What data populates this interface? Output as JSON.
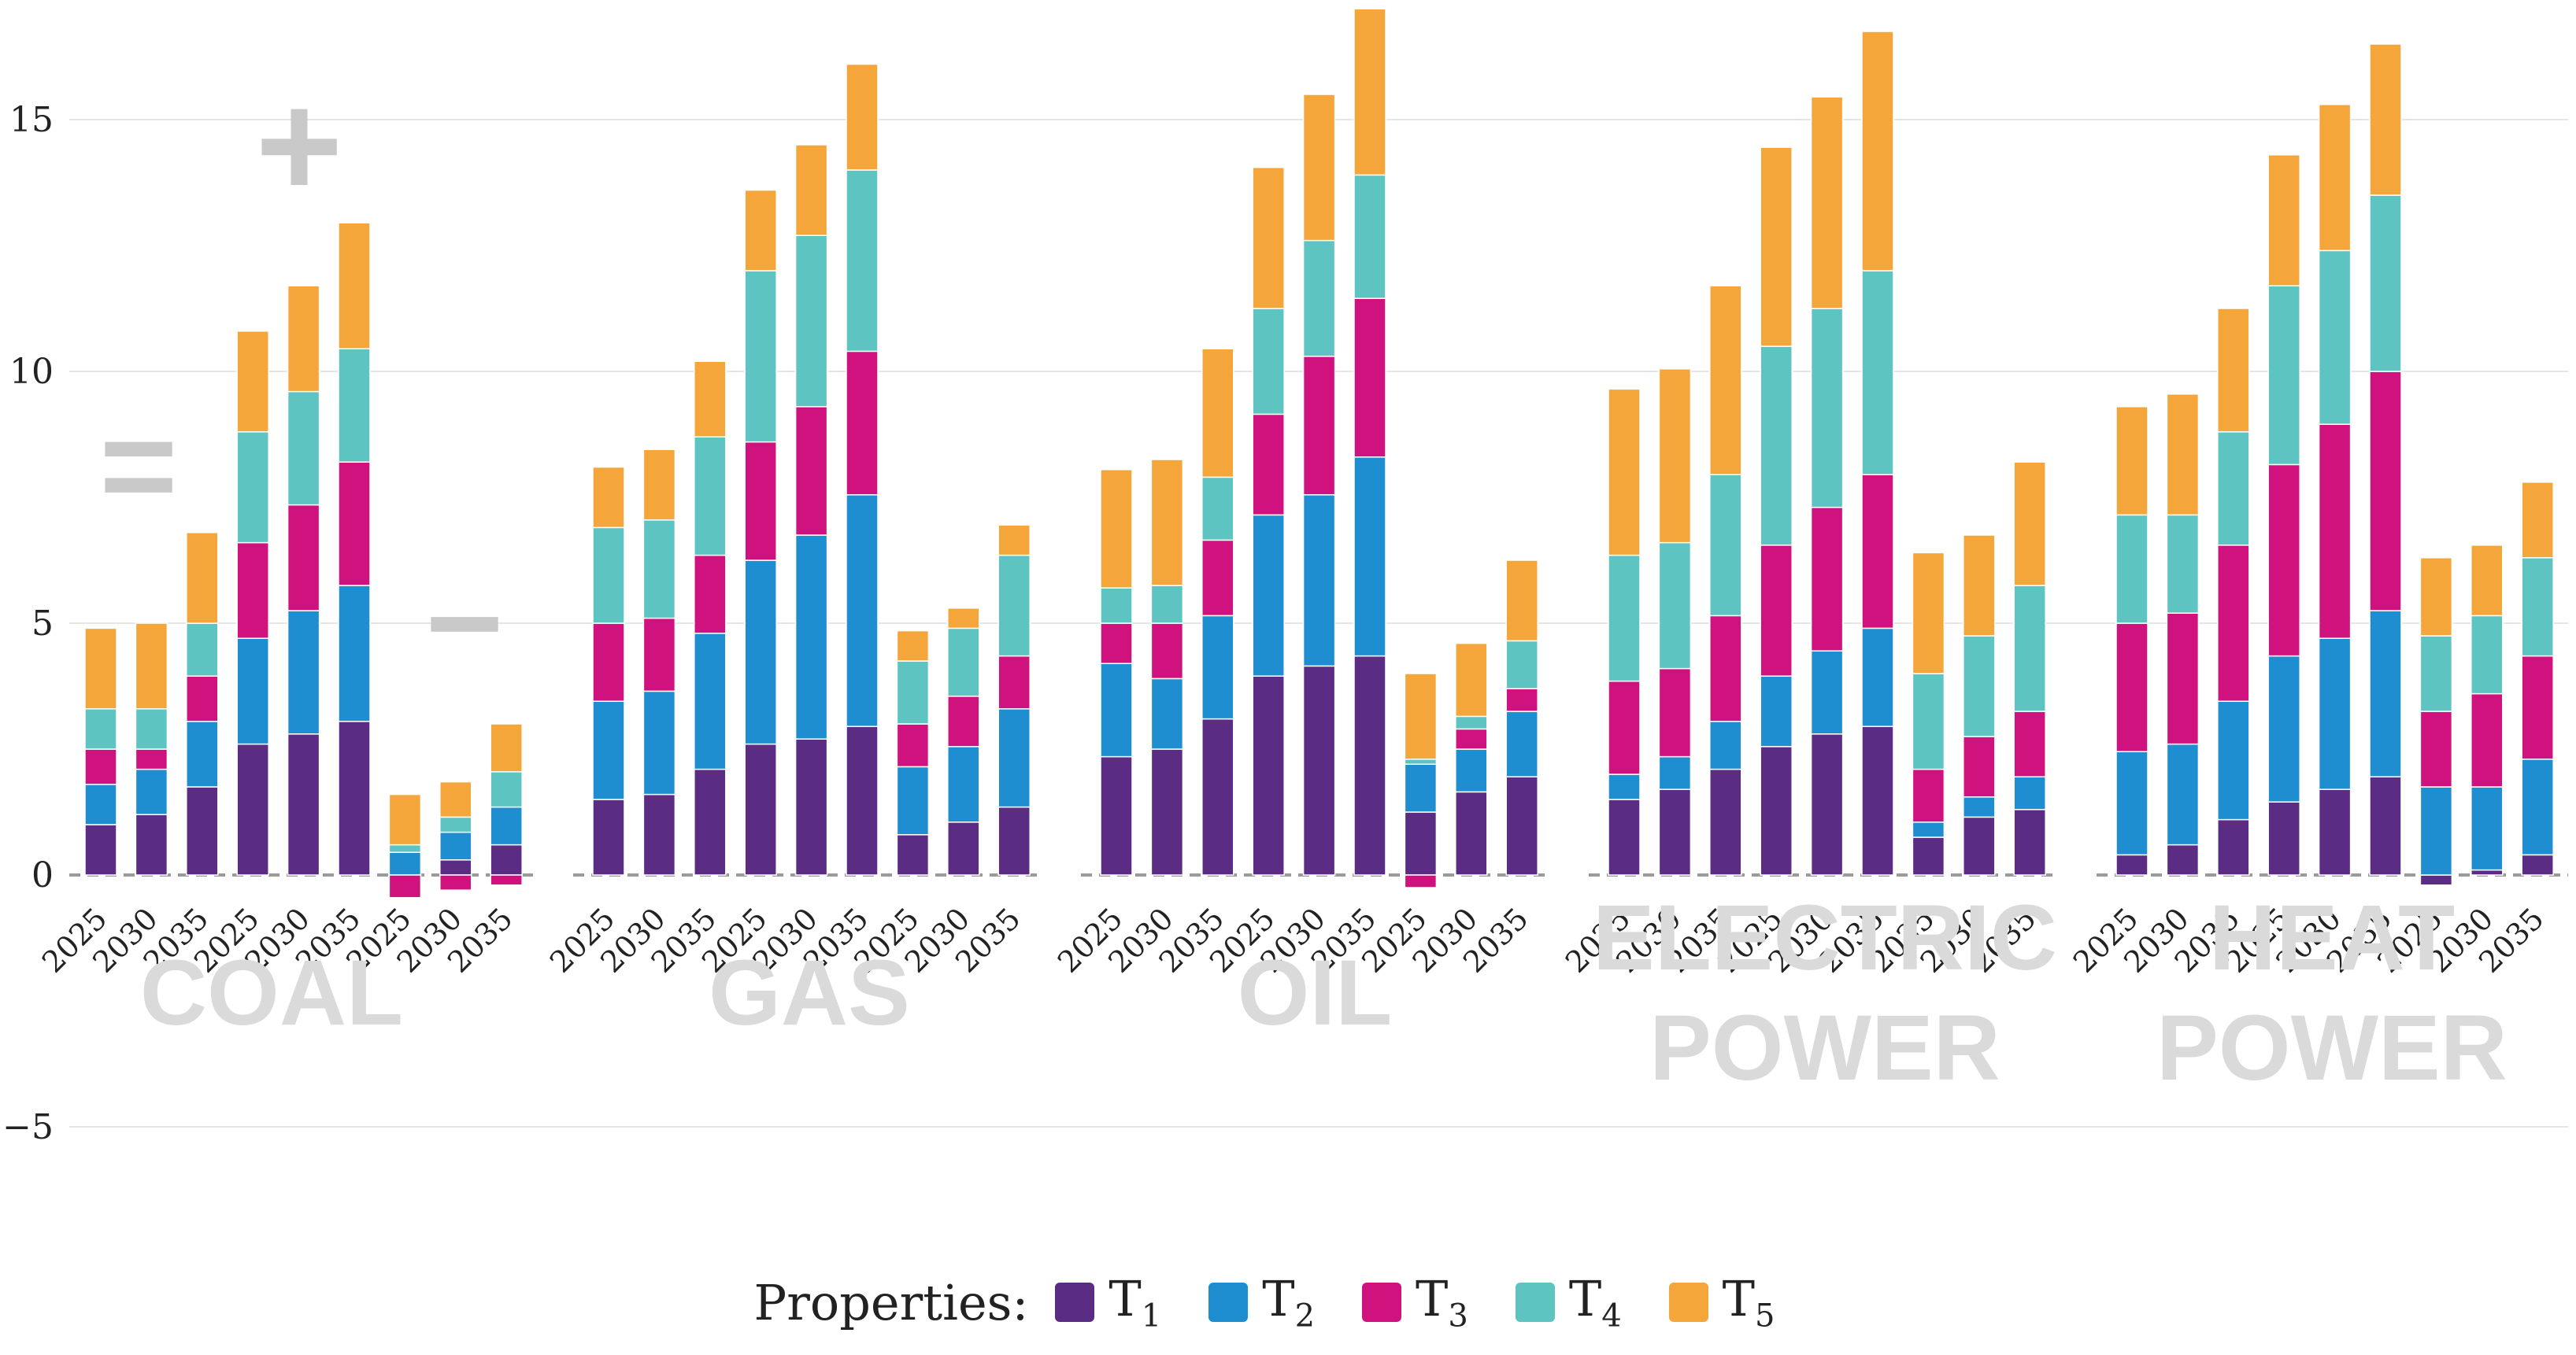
{
  "chart_data": {
    "type": "bar",
    "stacked": true,
    "ylim": [
      -5,
      17
    ],
    "yticks": [
      -5,
      0,
      5,
      10,
      15
    ],
    "legend": {
      "title": "Properties:",
      "position": "bottom",
      "entries": [
        {
          "key": "T1",
          "base": "T",
          "sub": "1",
          "color": "#5b2c83"
        },
        {
          "key": "T2",
          "base": "T",
          "sub": "2",
          "color": "#1f8ed0"
        },
        {
          "key": "T3",
          "base": "T",
          "sub": "3",
          "color": "#d0127f"
        },
        {
          "key": "T4",
          "base": "T",
          "sub": "4",
          "color": "#5ec4c1"
        },
        {
          "key": "T5",
          "base": "T",
          "sub": "5",
          "color": "#f5a63b"
        }
      ]
    },
    "scenario_signs": [
      "=",
      "+",
      "−"
    ],
    "groups": [
      {
        "label": "COAL",
        "bars": [
          {
            "year": "2025",
            "values": [
              1.0,
              0.8,
              0.7,
              0.8,
              1.6
            ]
          },
          {
            "year": "2030",
            "values": [
              1.2,
              0.9,
              0.4,
              0.8,
              1.7
            ]
          },
          {
            "year": "2035",
            "values": [
              1.75,
              1.3,
              0.9,
              1.05,
              1.8
            ]
          },
          {
            "year": "2025",
            "values": [
              2.6,
              2.1,
              1.9,
              2.2,
              2.0
            ]
          },
          {
            "year": "2030",
            "values": [
              2.8,
              2.45,
              2.1,
              2.25,
              2.1
            ]
          },
          {
            "year": "2035",
            "values": [
              3.05,
              2.7,
              2.45,
              2.25,
              2.5
            ]
          },
          {
            "year": "2025",
            "values": [
              0.0,
              0.45,
              -0.45,
              0.15,
              1.0
            ]
          },
          {
            "year": "2030",
            "values": [
              0.3,
              0.55,
              -0.3,
              0.3,
              0.7
            ]
          },
          {
            "year": "2035",
            "values": [
              0.6,
              0.75,
              -0.2,
              0.7,
              0.95
            ]
          }
        ]
      },
      {
        "label": "GAS",
        "bars": [
          {
            "year": "2025",
            "values": [
              1.5,
              1.95,
              1.55,
              1.9,
              1.2
            ]
          },
          {
            "year": "2030",
            "values": [
              1.6,
              2.05,
              1.45,
              1.95,
              1.4
            ]
          },
          {
            "year": "2035",
            "values": [
              2.1,
              2.7,
              1.55,
              2.35,
              1.5
            ]
          },
          {
            "year": "2025",
            "values": [
              2.6,
              3.65,
              2.35,
              3.4,
              1.6
            ]
          },
          {
            "year": "2030",
            "values": [
              2.7,
              4.05,
              2.55,
              3.4,
              1.8
            ]
          },
          {
            "year": "2035",
            "values": [
              2.95,
              4.6,
              2.85,
              3.6,
              2.1
            ]
          },
          {
            "year": "2025",
            "values": [
              0.8,
              1.35,
              0.85,
              1.25,
              0.6
            ]
          },
          {
            "year": "2030",
            "values": [
              1.05,
              1.5,
              1.0,
              1.35,
              0.4
            ]
          },
          {
            "year": "2035",
            "values": [
              1.35,
              1.95,
              1.05,
              2.0,
              0.6
            ]
          }
        ]
      },
      {
        "label": "OIL",
        "bars": [
          {
            "year": "2025",
            "values": [
              2.35,
              1.85,
              0.8,
              0.7,
              2.35
            ]
          },
          {
            "year": "2030",
            "values": [
              2.5,
              1.4,
              1.1,
              0.75,
              2.5
            ]
          },
          {
            "year": "2035",
            "values": [
              3.1,
              2.05,
              1.5,
              1.25,
              2.55
            ]
          },
          {
            "year": "2025",
            "values": [
              3.95,
              3.2,
              2.0,
              2.1,
              2.8
            ]
          },
          {
            "year": "2030",
            "values": [
              4.15,
              3.4,
              2.75,
              2.3,
              2.9
            ]
          },
          {
            "year": "2035",
            "values": [
              4.35,
              3.95,
              3.15,
              2.45,
              3.3
            ]
          },
          {
            "year": "2025",
            "values": [
              1.25,
              0.95,
              -0.25,
              0.1,
              1.7
            ]
          },
          {
            "year": "2030",
            "values": [
              1.65,
              0.85,
              0.4,
              0.25,
              1.45
            ]
          },
          {
            "year": "2035",
            "values": [
              1.95,
              1.3,
              0.45,
              0.95,
              1.6
            ]
          }
        ]
      },
      {
        "label": "ELECTRIC POWER",
        "bars": [
          {
            "year": "2025",
            "values": [
              1.5,
              0.5,
              1.85,
              2.5,
              3.3
            ]
          },
          {
            "year": "2030",
            "values": [
              1.7,
              0.65,
              1.75,
              2.5,
              3.45
            ]
          },
          {
            "year": "2035",
            "values": [
              2.1,
              0.95,
              2.1,
              2.8,
              3.75
            ]
          },
          {
            "year": "2025",
            "values": [
              2.55,
              1.4,
              2.6,
              3.95,
              3.95
            ]
          },
          {
            "year": "2030",
            "values": [
              2.8,
              1.65,
              2.85,
              3.95,
              4.2
            ]
          },
          {
            "year": "2035",
            "values": [
              2.95,
              1.95,
              3.05,
              4.05,
              4.75
            ]
          },
          {
            "year": "2025",
            "values": [
              0.75,
              0.3,
              1.05,
              1.9,
              2.4
            ]
          },
          {
            "year": "2030",
            "values": [
              1.15,
              0.4,
              1.2,
              2.0,
              2.0
            ]
          },
          {
            "year": "2035",
            "values": [
              1.3,
              0.65,
              1.3,
              2.5,
              2.45
            ]
          }
        ]
      },
      {
        "label": "HEAT POWER",
        "bars": [
          {
            "year": "2025",
            "values": [
              0.4,
              2.05,
              2.55,
              2.15,
              2.15
            ]
          },
          {
            "year": "2030",
            "values": [
              0.6,
              2.0,
              2.6,
              1.95,
              2.4
            ]
          },
          {
            "year": "2035",
            "values": [
              1.1,
              2.35,
              3.1,
              2.25,
              2.45
            ]
          },
          {
            "year": "2025",
            "values": [
              1.45,
              2.9,
              3.8,
              3.55,
              2.6
            ]
          },
          {
            "year": "2030",
            "values": [
              1.7,
              3.0,
              4.25,
              3.45,
              2.9
            ]
          },
          {
            "year": "2035",
            "values": [
              1.95,
              3.3,
              4.75,
              3.5,
              3.0
            ]
          },
          {
            "year": "2025",
            "values": [
              -0.2,
              1.75,
              1.5,
              1.5,
              1.55
            ]
          },
          {
            "year": "2030",
            "values": [
              0.1,
              1.65,
              1.85,
              1.55,
              1.4
            ]
          },
          {
            "year": "2035",
            "values": [
              0.4,
              1.9,
              2.05,
              1.95,
              1.5
            ]
          }
        ]
      }
    ]
  }
}
